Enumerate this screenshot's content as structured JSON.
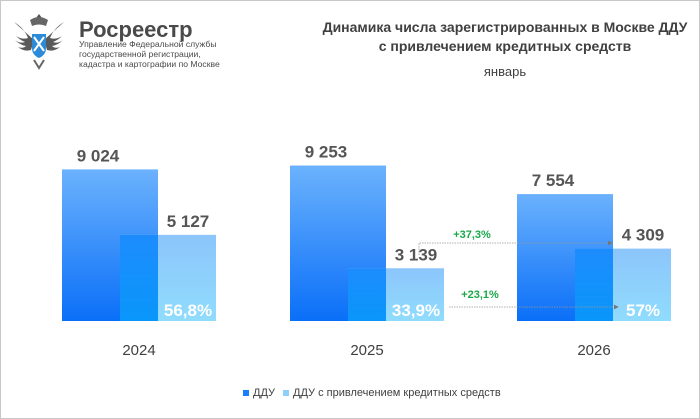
{
  "header": {
    "brand": "Росреестр",
    "brand_subtitle": "Управление Федеральной службы государственной регистрации, кадастра и картографии по Москве"
  },
  "chart_data": {
    "type": "bar",
    "title": "Динамика числа зарегистрированных в Москве ДДУ с привлечением кредитных средств",
    "subtitle": "январь",
    "categories": [
      "2024",
      "2025",
      "2026"
    ],
    "series": [
      {
        "name": "ДДУ",
        "values": [
          9024,
          9253,
          7554
        ],
        "labels": [
          "9 024",
          "9 253",
          "7 554"
        ],
        "color": "#1a7dfb"
      },
      {
        "name": "ДДУ с привлечением кредитных средств",
        "values": [
          5127,
          3139,
          4309
        ],
        "labels": [
          "5 127",
          "3 139",
          "4 309"
        ],
        "color": "#8fd0fb"
      }
    ],
    "share_labels": [
      "56,8%",
      "33,9%",
      "57%"
    ],
    "annotations": [
      {
        "text": "+37,3%",
        "from": "2025",
        "to": "2026",
        "series": "ДДУ с привлечением кредитных средств"
      },
      {
        "text": "+23,1%",
        "from": "2025",
        "to": "2026",
        "series": "share"
      }
    ],
    "legend_position": "bottom",
    "grid": false,
    "annotation_color": "#1aa84a"
  }
}
